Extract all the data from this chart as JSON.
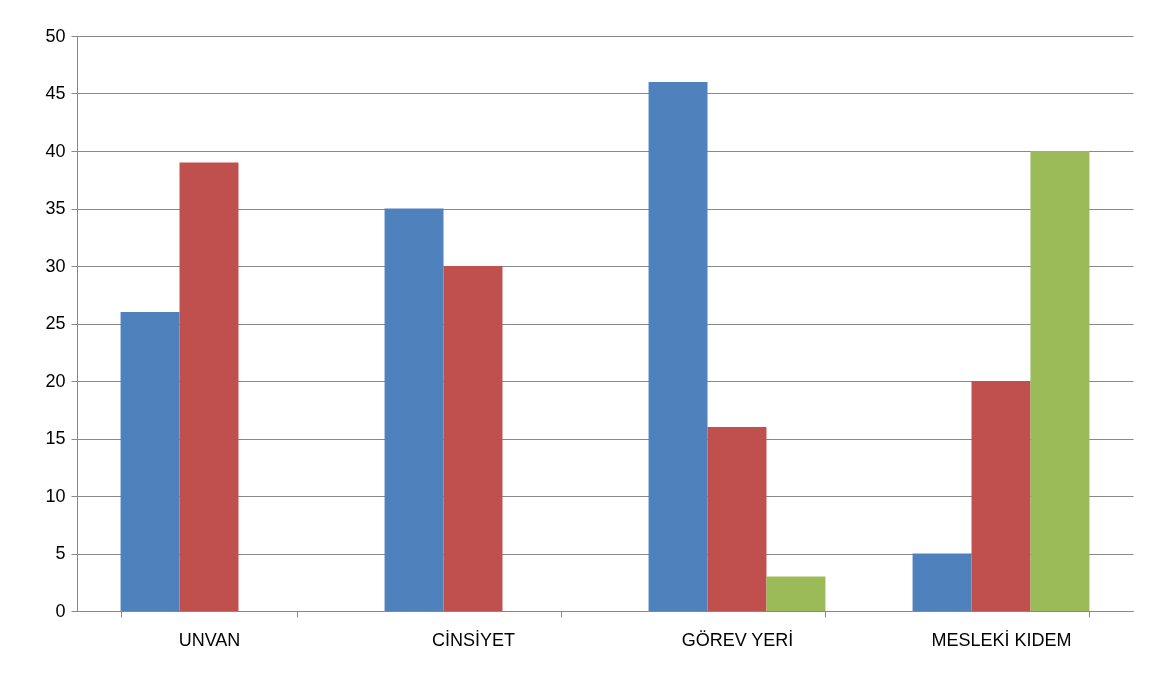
{
  "chart_data": {
    "type": "bar",
    "categories": [
      "UNVAN",
      "CİNSİYET",
      "GÖREV YERİ",
      "MESLEKİ KIDEM"
    ],
    "series": [
      {
        "color": "#4f81bd",
        "values": [
          26,
          35,
          46,
          5
        ]
      },
      {
        "color": "#c0504d",
        "values": [
          39,
          30,
          16,
          20
        ]
      },
      {
        "color": "#9bbb59",
        "values": [
          null,
          null,
          3,
          40
        ]
      }
    ],
    "ylim": [
      0,
      50
    ],
    "yticks": [
      0,
      5,
      10,
      15,
      20,
      25,
      30,
      35,
      40,
      45,
      50
    ],
    "grid": "y",
    "legend": false
  }
}
